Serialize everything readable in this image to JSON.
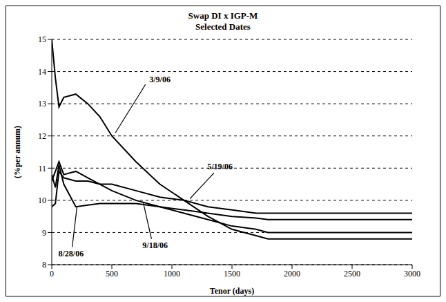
{
  "chart_data": {
    "type": "line",
    "title": "Swap DI x IGP-M",
    "subtitle": "Selected Dates",
    "x_label": "Tenor (days)",
    "y_label": "(%per annum)",
    "x": [
      0,
      30,
      60,
      100,
      200,
      300,
      400,
      500,
      700,
      900,
      1100,
      1300,
      1500,
      1700,
      1800,
      2000,
      2500,
      3000
    ],
    "series": [
      {
        "name": "3/9/06",
        "color": "#000000",
        "values": [
          15.0,
          13.8,
          12.9,
          13.2,
          13.3,
          13.0,
          12.6,
          12.0,
          11.2,
          10.5,
          10.0,
          9.5,
          9.1,
          8.9,
          8.8,
          8.8,
          8.8,
          8.8
        ]
      },
      {
        "name": "5/19/06",
        "color": "#000000",
        "values": [
          9.8,
          9.9,
          10.9,
          10.7,
          10.6,
          10.6,
          10.5,
          10.5,
          10.3,
          10.1,
          10.0,
          9.8,
          9.7,
          9.6,
          9.6,
          9.6,
          9.6,
          9.6
        ]
      },
      {
        "name": "8/28/06",
        "color": "#000000",
        "values": [
          10.8,
          10.4,
          11.1,
          10.5,
          9.8,
          9.85,
          9.9,
          9.9,
          9.9,
          9.8,
          9.7,
          9.6,
          9.5,
          9.45,
          9.4,
          9.4,
          9.4,
          9.4
        ]
      },
      {
        "name": "9/18/06",
        "color": "#000000",
        "values": [
          10.6,
          10.9,
          11.2,
          10.8,
          10.9,
          10.7,
          10.5,
          10.3,
          10.0,
          9.8,
          9.6,
          9.4,
          9.2,
          9.1,
          9.0,
          9.0,
          9.0,
          9.0
        ]
      }
    ],
    "xlim": [
      0,
      3000
    ],
    "xticks": [
      0,
      500,
      1000,
      1500,
      2000,
      2500,
      3000
    ],
    "ylim": [
      8,
      15
    ],
    "yticks": [
      8,
      9,
      10,
      11,
      12,
      13,
      14,
      15
    ],
    "grid": true,
    "legend": "none"
  }
}
